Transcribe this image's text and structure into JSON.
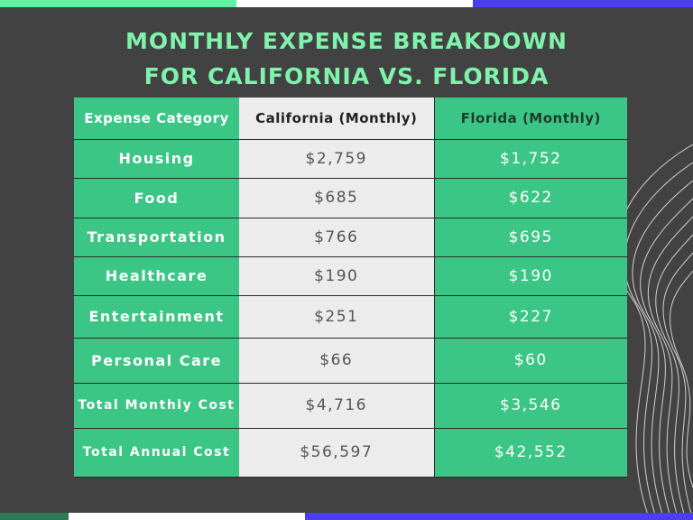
{
  "title_line1": "MONTHLY EXPENSE BREAKDOWN",
  "title_line2": "FOR CALIFORNIA VS. FLORIDA",
  "colors": {
    "background": "#424242",
    "title": "#7ff3ac",
    "green": "#3cc686",
    "gray": "#ececec",
    "blue": "#4b3df0",
    "dark_green": "#2e7a55"
  },
  "table": {
    "headers": [
      "Expense Category",
      "California (Monthly)",
      "Florida (Monthly)"
    ],
    "rows": [
      {
        "category": "Housing",
        "california": "$2,759",
        "florida": "$1,752"
      },
      {
        "category": "Food",
        "california": "$685",
        "florida": "$622"
      },
      {
        "category": "Transportation",
        "california": "$766",
        "florida": "$695"
      },
      {
        "category": "Healthcare",
        "california": "$190",
        "florida": "$190"
      },
      {
        "category": "Entertainment",
        "california": "$251",
        "florida": "$227"
      },
      {
        "category": "Personal Care",
        "california": "$66",
        "florida": "$60"
      },
      {
        "category": "Total Monthly Cost",
        "california": "$4,716",
        "florida": "$3,546"
      },
      {
        "category": "Total Annual Cost",
        "california": "$56,597",
        "florida": "$42,552"
      }
    ]
  }
}
